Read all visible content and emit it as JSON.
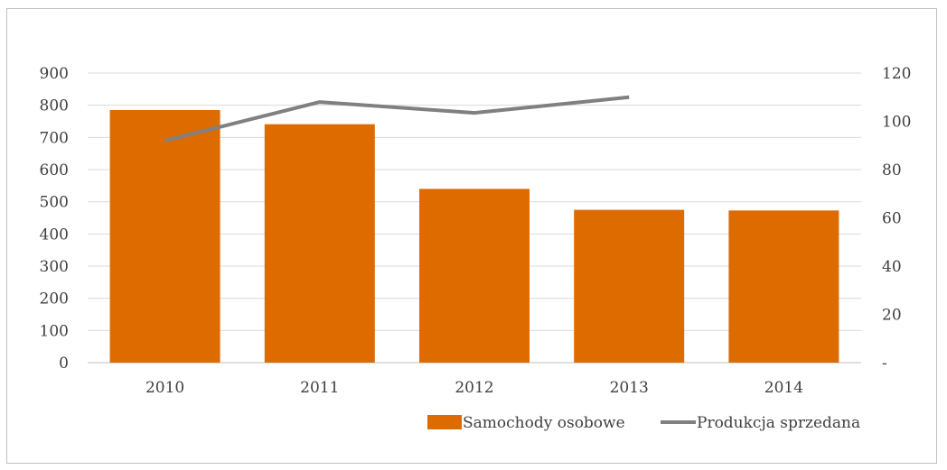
{
  "chart_data": {
    "type": "bar",
    "title": "",
    "categories": [
      "2010",
      "2011",
      "2012",
      "2013",
      "2014"
    ],
    "series": [
      {
        "name": "Samochody osobowe",
        "type": "bar",
        "axis": "left",
        "color": "#de6b00",
        "values": [
          785,
          741,
          540,
          475,
          473
        ]
      },
      {
        "name": "Produkcja sprzedana",
        "type": "line",
        "axis": "right",
        "color": "#808080",
        "values": [
          92,
          108,
          103.5,
          110,
          null
        ]
      }
    ],
    "y_left": {
      "min": 0,
      "max": 900,
      "step": 100,
      "tick_labels": [
        "0",
        "100",
        "200",
        "300",
        "400",
        "500",
        "600",
        "700",
        "800",
        "900"
      ]
    },
    "y_right": {
      "min": 0,
      "max": 120,
      "step": 20,
      "tick_labels": [
        "-",
        "20",
        "40",
        "60",
        "80",
        "100",
        "120"
      ]
    },
    "grid": true,
    "legend_position": "bottom-right"
  }
}
